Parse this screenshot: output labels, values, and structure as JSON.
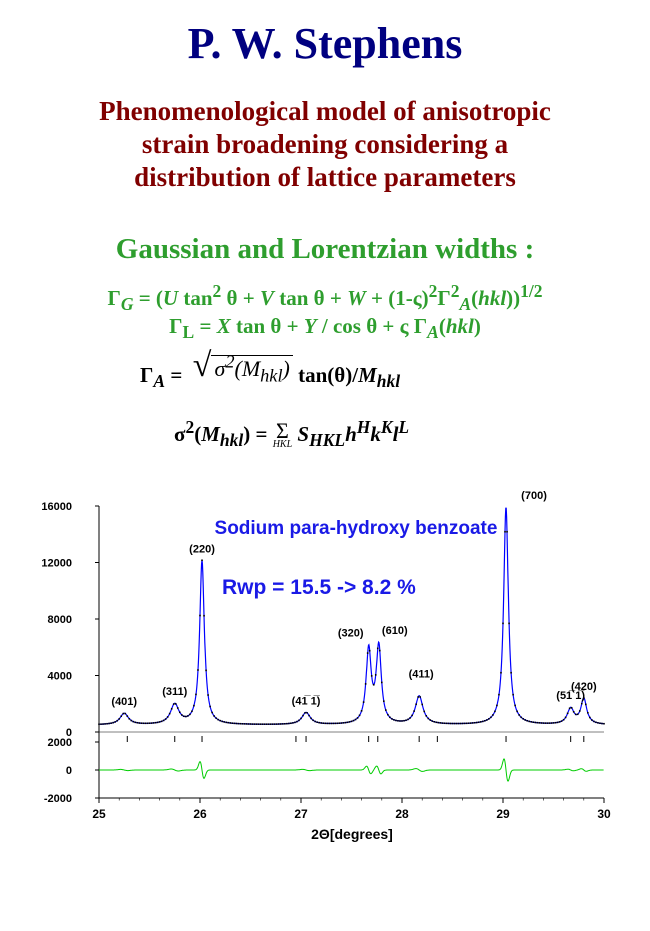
{
  "title": "P. W. Stephens",
  "subtitle": [
    "Phenomenological model of anisotropic",
    "strain broadening considering a",
    "distribution of lattice parameters"
  ],
  "widths_heading": "Gaussian and Lorentzian widths :",
  "equations": {
    "gaussian": "ΓG = (U tan² θ + V tan θ + W + (1-ς)²Γ²A(hkl))¹ᐟ²",
    "lorentzian": "ΓL = X tan θ + Y / cos θ + ς ΓA(hkl)",
    "gamma_a": "ΓA = √σ²(Mhkl) tan(θ)/Mhkl",
    "sigma": "σ²(Mhkl) = ΣHKL SHKL h^H k^K l^L"
  },
  "chart_data": {
    "type": "line",
    "title": "Sodium para-hydroxy benzoate",
    "annotation": "Rwp = 15.5 -> 8.2 %",
    "xlabel": "2Θ[degrees]",
    "ylabel": "",
    "xlim": [
      25,
      30
    ],
    "ylim": [
      0,
      16000
    ],
    "diff_ylim": [
      -2000,
      2000
    ],
    "x_ticks": [
      "25",
      "26",
      "27",
      "28",
      "29",
      "30"
    ],
    "y_ticks": [
      "0",
      "4000",
      "8000",
      "12000",
      "16000"
    ],
    "diff_ticks": [
      "2000",
      "0",
      "-2000"
    ],
    "background": 500,
    "peaks": [
      {
        "label": "(401)",
        "x": 25.25,
        "intensity": 800,
        "width": 0.05
      },
      {
        "label": "(311)",
        "x": 25.75,
        "intensity": 1400,
        "width": 0.05
      },
      {
        "label": "(220)",
        "x": 26.02,
        "intensity": 11600,
        "width": 0.028
      },
      {
        "label": "(41̅ 1̅)",
        "x": 27.05,
        "intensity": 850,
        "width": 0.05
      },
      {
        "label": "(320)",
        "x": 27.67,
        "intensity": 5200,
        "width": 0.03
      },
      {
        "label": "(610)",
        "x": 27.77,
        "intensity": 5400,
        "width": 0.03
      },
      {
        "label": "(411)",
        "x": 28.17,
        "intensity": 2000,
        "width": 0.045
      },
      {
        "label": "(700)",
        "x": 29.03,
        "intensity": 15400,
        "width": 0.028
      },
      {
        "label": "(51̅ 1̅)",
        "x": 29.67,
        "intensity": 1100,
        "width": 0.04
      },
      {
        "label": "(420)",
        "x": 29.8,
        "intensity": 1800,
        "width": 0.035
      }
    ],
    "reflection_marks": [
      25.28,
      25.75,
      26.02,
      26.95,
      27.05,
      27.67,
      27.76,
      28.17,
      28.35,
      29.03,
      29.67,
      29.8
    ],
    "colors": {
      "observed": "#0000ff",
      "difference": "#00cc00",
      "title": "#1a1ae6"
    }
  }
}
